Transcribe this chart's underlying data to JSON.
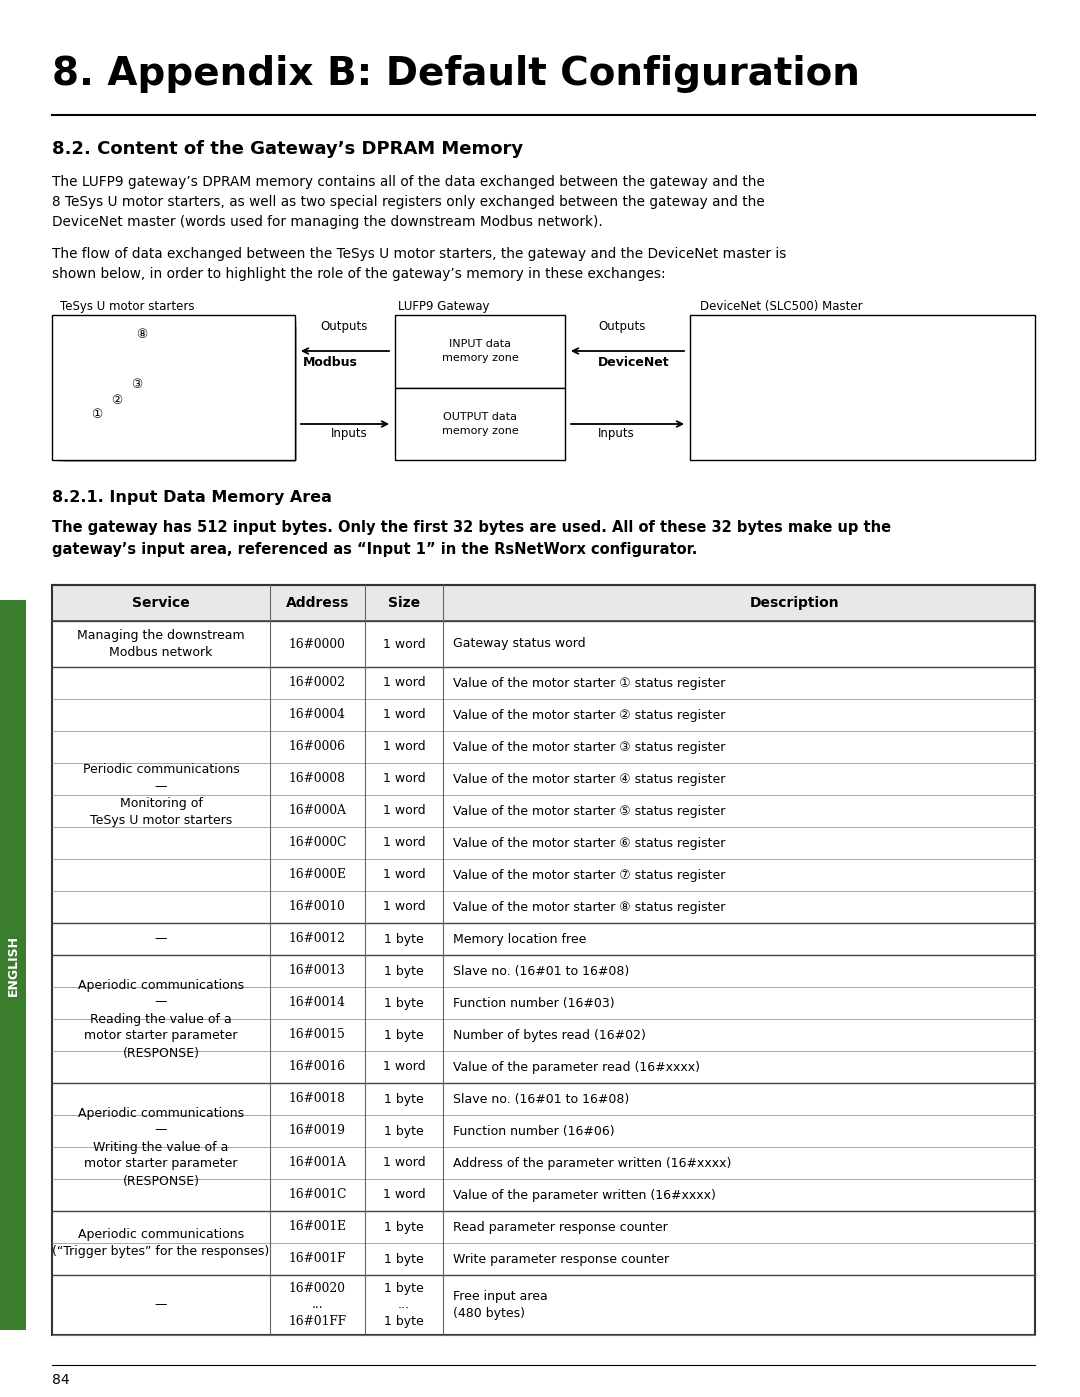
{
  "title": "8. Appendix B: Default Configuration",
  "section_title": "8.2. Content of the Gateway’s DPRAM Memory",
  "body_text1": "The LUFP9 gateway’s DPRAM memory contains all of the data exchanged between the gateway and the\n8 TeSys U motor starters, as well as two special registers only exchanged between the gateway and the\nDeviceNet master (words used for managing the downstream Modbus network).",
  "body_text2": "The flow of data exchanged between the TeSys U motor starters, the gateway and the DeviceNet master is\nshown below, in order to highlight the role of the gateway’s memory in these exchanges:",
  "section_sub_title": "8.2.1. Input Data Memory Area",
  "bold_text": "The gateway has 512 input bytes. Only the first 32 bytes are used. All of these 32 bytes make up the\ngateway’s input area, referenced as “Input 1” in the RsNetWorx configurator.",
  "table_headers": [
    "Service",
    "Address",
    "Size",
    "Description"
  ],
  "all_rows_data": [
    [
      "16#0000",
      "1 word",
      "Gateway status word"
    ],
    [
      "16#0002",
      "1 word",
      "Value of the motor starter ① status register"
    ],
    [
      "16#0004",
      "1 word",
      "Value of the motor starter ② status register"
    ],
    [
      "16#0006",
      "1 word",
      "Value of the motor starter ③ status register"
    ],
    [
      "16#0008",
      "1 word",
      "Value of the motor starter ④ status register"
    ],
    [
      "16#000A",
      "1 word",
      "Value of the motor starter ⑤ status register"
    ],
    [
      "16#000C",
      "1 word",
      "Value of the motor starter ⑥ status register"
    ],
    [
      "16#000E",
      "1 word",
      "Value of the motor starter ⑦ status register"
    ],
    [
      "16#0010",
      "1 word",
      "Value of the motor starter ⑧ status register"
    ],
    [
      "16#0012",
      "1 byte",
      "Memory location free"
    ],
    [
      "16#0013",
      "1 byte",
      "Slave no. (16#01 to 16#08)"
    ],
    [
      "16#0014",
      "1 byte",
      "Function number (16#03)"
    ],
    [
      "16#0015",
      "1 byte",
      "Number of bytes read (16#02)"
    ],
    [
      "16#0016",
      "1 word",
      "Value of the parameter read (16#xxxx)"
    ],
    [
      "16#0018",
      "1 byte",
      "Slave no. (16#01 to 16#08)"
    ],
    [
      "16#0019",
      "1 byte",
      "Function number (16#06)"
    ],
    [
      "16#001A",
      "1 word",
      "Address of the parameter written (16#xxxx)"
    ],
    [
      "16#001C",
      "1 word",
      "Value of the parameter written (16#xxxx)"
    ],
    [
      "16#001E",
      "1 byte",
      "Read parameter response counter"
    ],
    [
      "16#001F",
      "1 byte",
      "Write parameter response counter"
    ],
    [
      "16#0020\n...\n16#01FF",
      "1 byte\n...\n1 byte",
      "Free input area\n(480 bytes)"
    ]
  ],
  "service_labels": [
    [
      0,
      1,
      "Managing the downstream\nModbus network"
    ],
    [
      1,
      9,
      "Periodic communications\n—\nMonitoring of\nTeSys U motor starters"
    ],
    [
      9,
      10,
      "—"
    ],
    [
      10,
      14,
      "Aperiodic communications\n—\nReading the value of a\nmotor starter parameter\n(RESPONSE)"
    ],
    [
      14,
      18,
      "Aperiodic communications\n—\nWriting the value of a\nmotor starter parameter\n(RESPONSE)"
    ],
    [
      18,
      20,
      "Aperiodic communications\n(“Trigger bytes” for the responses)"
    ],
    [
      20,
      21,
      "—"
    ]
  ],
  "page_number": "84",
  "english_bar_color": "#3a7d2c",
  "bg_color": "#ffffff"
}
